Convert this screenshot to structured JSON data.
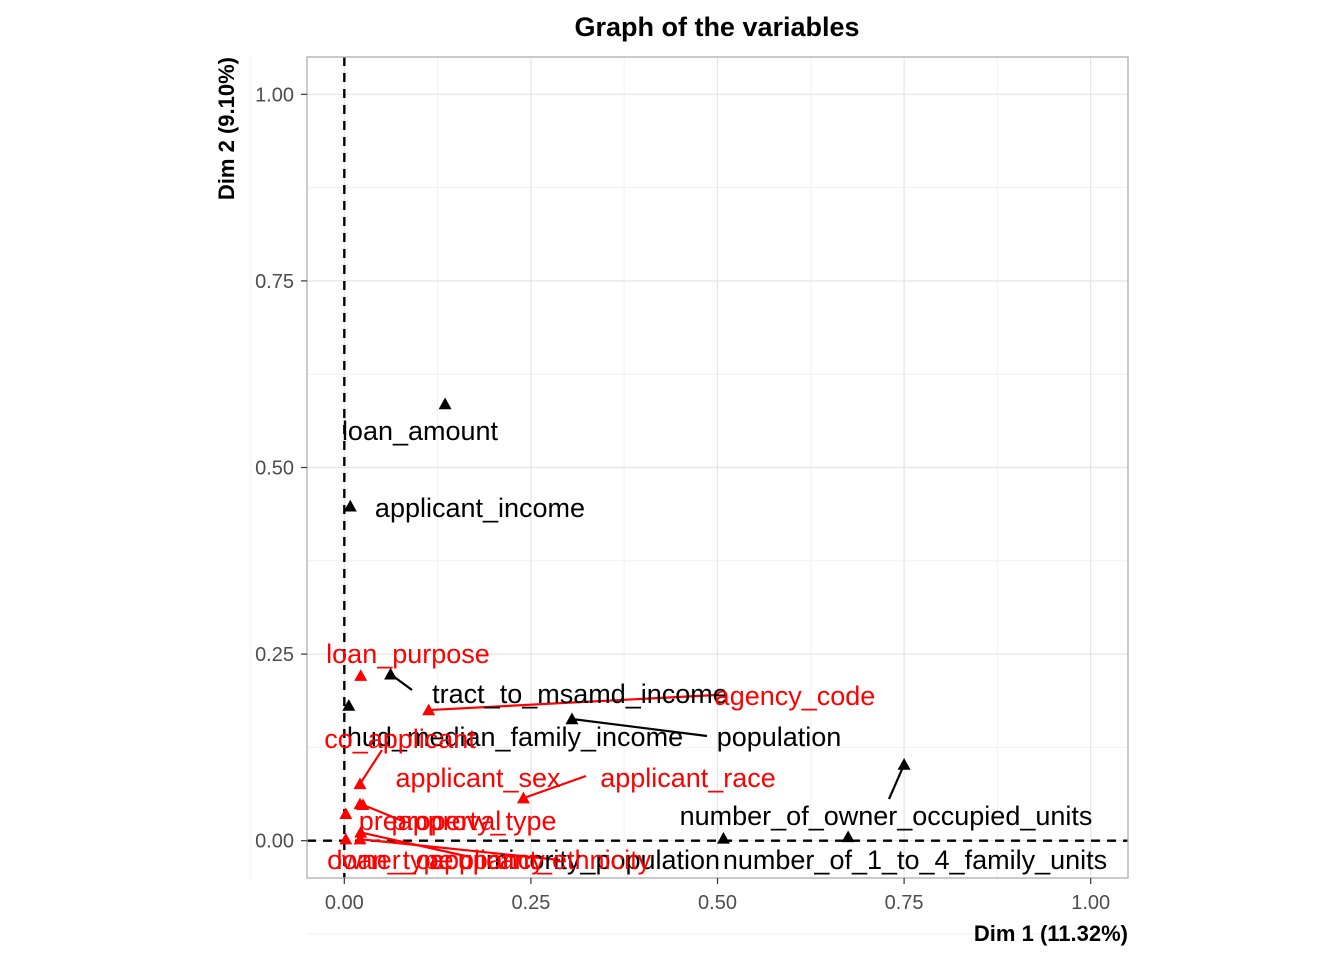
{
  "chart_data": {
    "type": "scatter",
    "title": "Graph of the variables",
    "xlabel": "Dim 1 (11.32%)",
    "ylabel": "Dim 2 (9.10%)",
    "xlim": [
      -0.05,
      1.05
    ],
    "ylim": [
      -0.05,
      1.05
    ],
    "x_ticks": [
      "0.00",
      "0.25",
      "0.50",
      "0.75",
      "1.00"
    ],
    "y_ticks": [
      "0.00",
      "0.25",
      "0.50",
      "0.75",
      "1.00"
    ],
    "grid": true,
    "reference_lines": {
      "x": 0,
      "y": 0,
      "style": "dashed"
    },
    "colors": {
      "active": "#000000",
      "supplementary": "#ff0000",
      "grid": "#e5e5e5",
      "panel_border": "#b3b3b3"
    },
    "points": [
      {
        "label": "loan_amount",
        "x": 0.135,
        "y": 0.585,
        "group": "active",
        "color": "#000000"
      },
      {
        "label": "applicant_income",
        "x": 0.008,
        "y": 0.448,
        "group": "active",
        "color": "#000000"
      },
      {
        "label": "tract_to_msamd_income",
        "x": 0.062,
        "y": 0.223,
        "group": "active",
        "color": "#000000"
      },
      {
        "label": "hud_median_family_income",
        "x": 0.006,
        "y": 0.181,
        "group": "active",
        "color": "#000000"
      },
      {
        "label": "population",
        "x": 0.305,
        "y": 0.163,
        "group": "active",
        "color": "#000000"
      },
      {
        "label": "number_of_owner_occupied_units",
        "x": 0.75,
        "y": 0.102,
        "group": "active",
        "color": "#000000"
      },
      {
        "label": "number_of_1_to_4_family_units",
        "x": 0.675,
        "y": 0.005,
        "group": "active",
        "color": "#000000"
      },
      {
        "label": "minority_population",
        "x": 0.508,
        "y": 0.003,
        "group": "active",
        "color": "#000000"
      },
      {
        "label": "loan_purpose",
        "x": 0.022,
        "y": 0.221,
        "group": "supplementary",
        "color": "#ff0000"
      },
      {
        "label": "agency_code",
        "x": 0.113,
        "y": 0.175,
        "group": "supplementary",
        "color": "#ff0000"
      },
      {
        "label": "co_applicant",
        "x": 0.021,
        "y": 0.076,
        "group": "supplementary",
        "color": "#ff0000"
      },
      {
        "label": "applicant_sex",
        "x": 0.021,
        "y": 0.049,
        "group": "supplementary",
        "color": "#ff0000"
      },
      {
        "label": "applicant_race",
        "x": 0.24,
        "y": 0.057,
        "group": "supplementary",
        "color": "#ff0000"
      },
      {
        "label": "preapproval",
        "x": 0.002,
        "y": 0.036,
        "group": "supplementary",
        "color": "#ff0000"
      },
      {
        "label": "property_type",
        "x": 0.025,
        "y": 0.048,
        "group": "supplementary",
        "color": "#ff0000"
      },
      {
        "label": "loan_type",
        "x": 0.002,
        "y": 0.002,
        "group": "supplementary",
        "color": "#ff0000"
      },
      {
        "label": "owner_occupancy",
        "x": 0.022,
        "y": 0.011,
        "group": "supplementary",
        "color": "#ff0000"
      },
      {
        "label": "applicant_ethnicity",
        "x": 0.021,
        "y": 0.002,
        "group": "supplementary",
        "color": "#ff0000"
      }
    ]
  }
}
